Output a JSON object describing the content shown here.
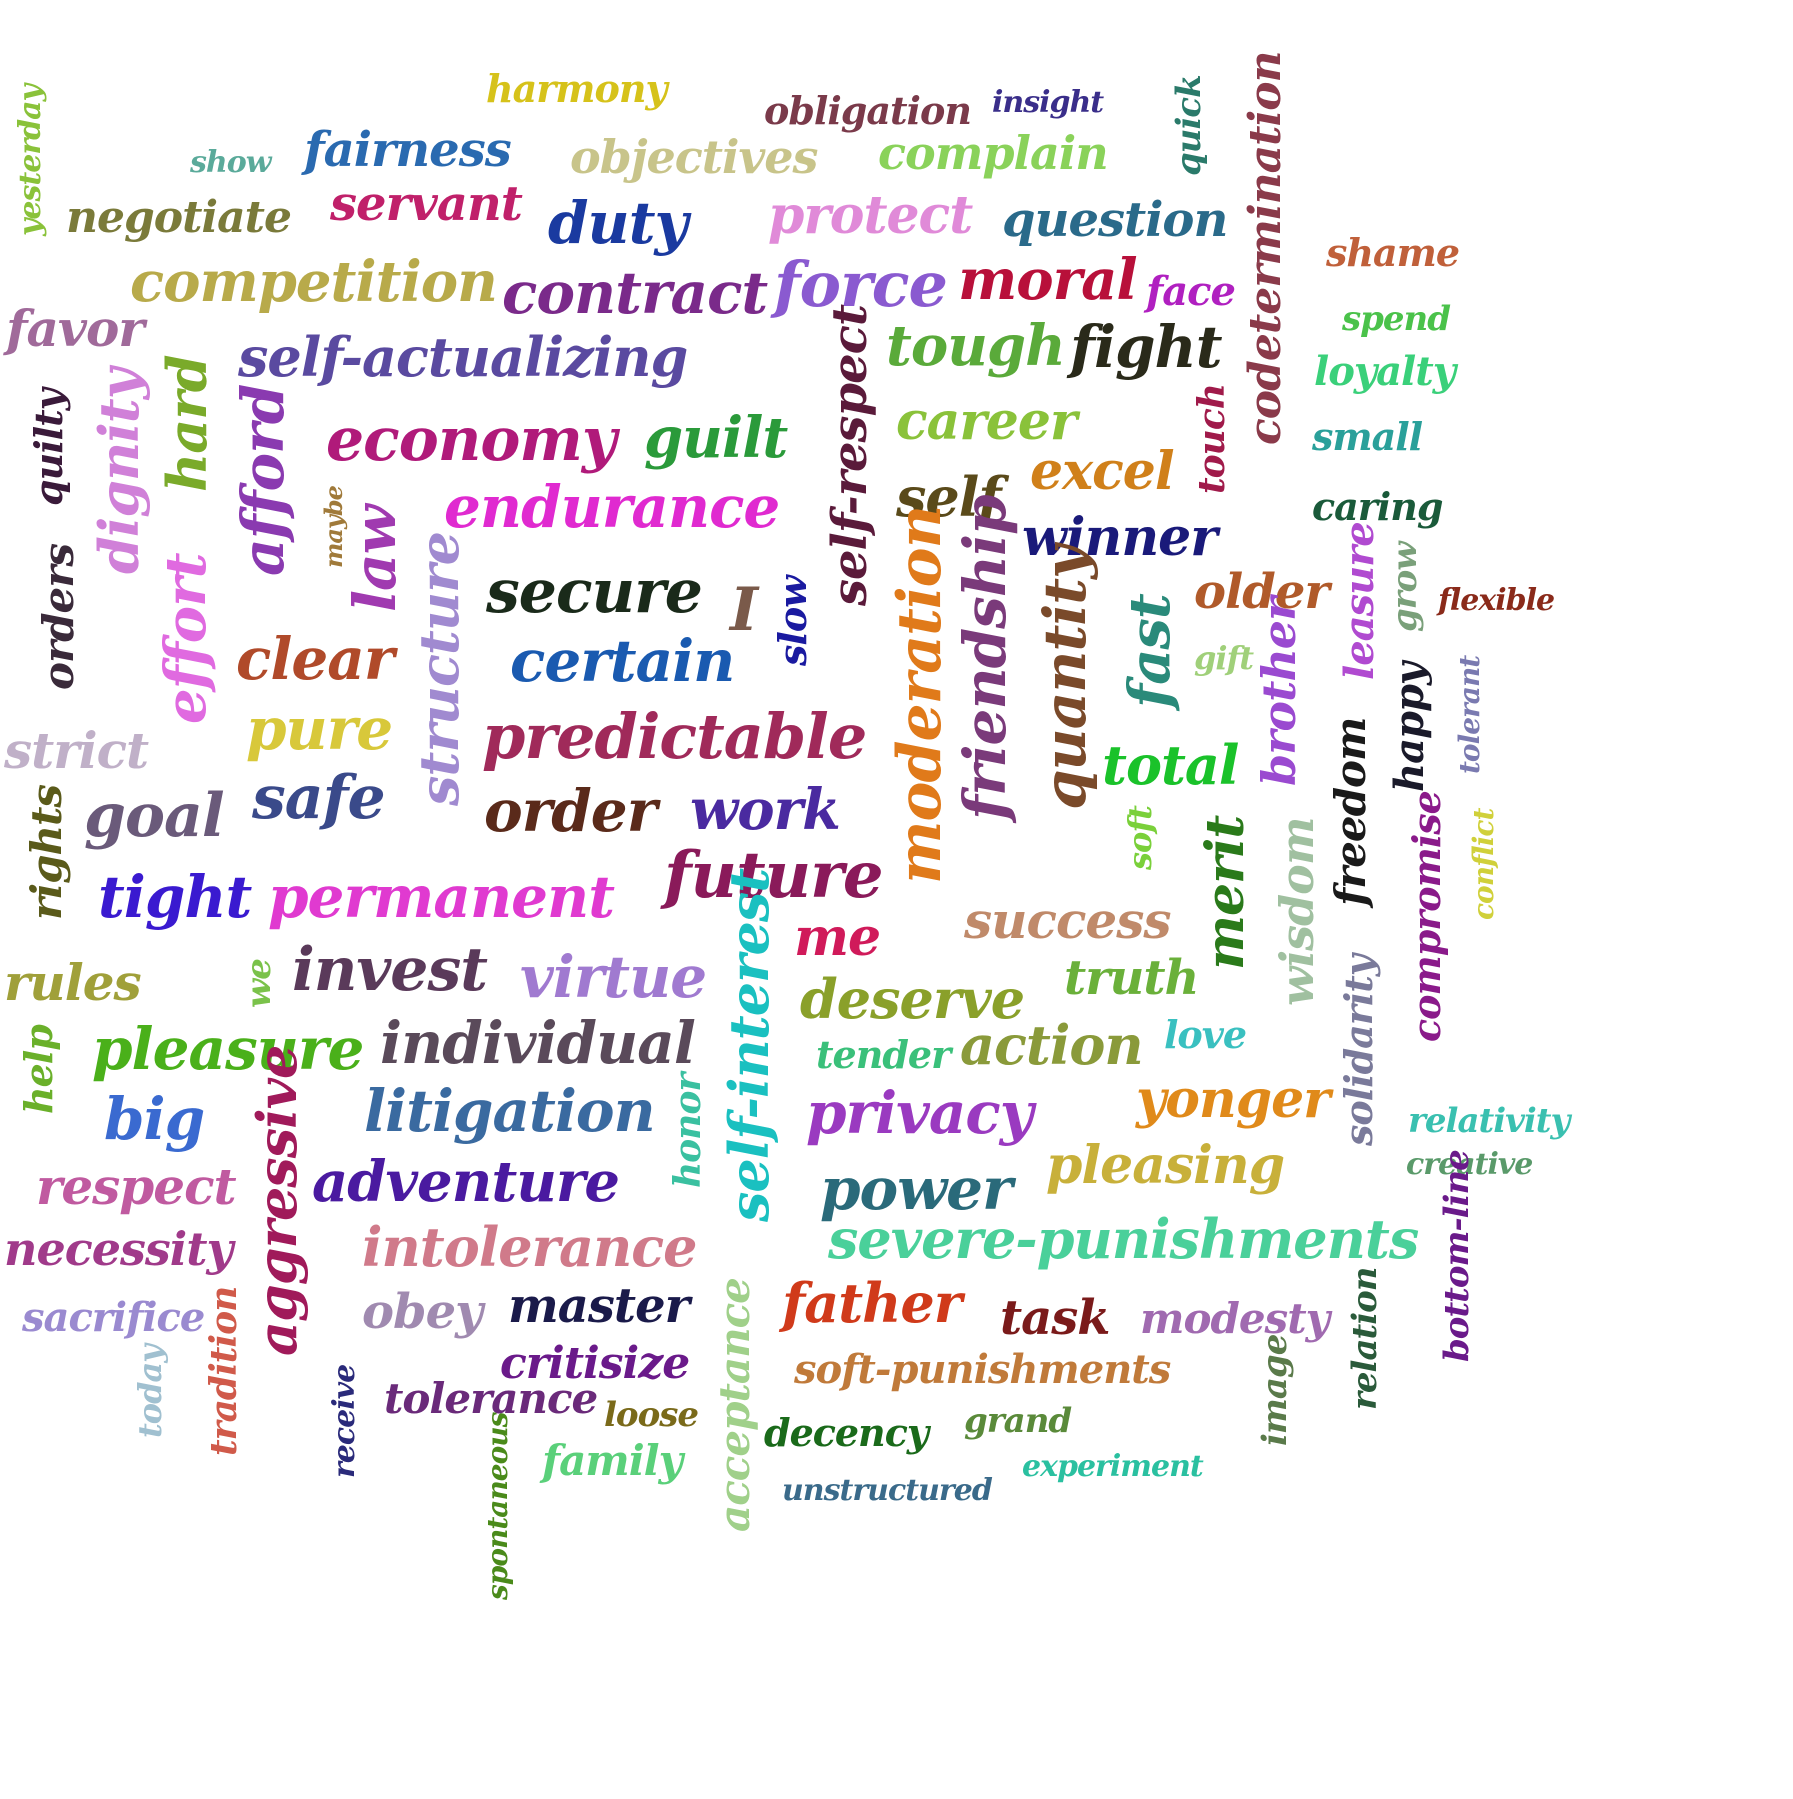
{
  "words": [
    {
      "text": "harmony",
      "color": "#d6c21a"
    },
    {
      "text": "obligation",
      "color": "#7a3a4a"
    },
    {
      "text": "insight",
      "color": "#3a2e8a"
    },
    {
      "text": "quick",
      "color": "#2a7a6a"
    },
    {
      "text": "codetermination",
      "color": "#8a3a4a"
    },
    {
      "text": "yesterday",
      "color": "#8ac23a"
    },
    {
      "text": "show",
      "color": "#5aaa9a"
    },
    {
      "text": "fairness",
      "color": "#2a6ab0"
    },
    {
      "text": "objectives",
      "color": "#c8c48a"
    },
    {
      "text": "complain",
      "color": "#8ad25a"
    },
    {
      "text": "negotiate",
      "color": "#7a7a3a"
    },
    {
      "text": "servant",
      "color": "#c0206a"
    },
    {
      "text": "duty",
      "color": "#1a3aa0"
    },
    {
      "text": "protect",
      "color": "#e08ad8"
    },
    {
      "text": "question",
      "color": "#2a6a8a"
    },
    {
      "text": "shame",
      "color": "#c0603a"
    },
    {
      "text": "competition",
      "color": "#b8aa4a"
    },
    {
      "text": "contract",
      "color": "#7a2a8a"
    },
    {
      "text": "force",
      "color": "#8a5ad0"
    },
    {
      "text": "moral",
      "color": "#b8103a"
    },
    {
      "text": "face",
      "color": "#b020c0"
    },
    {
      "text": "spend",
      "color": "#4ac24a"
    },
    {
      "text": "favor",
      "color": "#a06a9a"
    },
    {
      "text": "loyalty",
      "color": "#3ad07a"
    },
    {
      "text": "self-actualizing",
      "color": "#5a4aa0"
    },
    {
      "text": "self-respect",
      "color": "#5a1a3a"
    },
    {
      "text": "tough",
      "color": "#5aaa3a"
    },
    {
      "text": "fight",
      "color": "#2a2a1a"
    },
    {
      "text": "small",
      "color": "#2aa09a"
    },
    {
      "text": "quilty",
      "color": "#3a1a3a"
    },
    {
      "text": "dignity",
      "color": "#d080d8"
    },
    {
      "text": "hard",
      "color": "#7aaa2a"
    },
    {
      "text": "afford",
      "color": "#8a3ab0"
    },
    {
      "text": "economy",
      "color": "#b01a7a"
    },
    {
      "text": "guilt",
      "color": "#2a9a3a"
    },
    {
      "text": "career",
      "color": "#8ac23a"
    },
    {
      "text": "touch",
      "color": "#a01a4a"
    },
    {
      "text": "excel",
      "color": "#d0801a"
    },
    {
      "text": "caring",
      "color": "#1a5a3a"
    },
    {
      "text": "maybe",
      "color": "#a07a3a"
    },
    {
      "text": "endurance",
      "color": "#e02ad0"
    },
    {
      "text": "self",
      "color": "#5a4a1a"
    },
    {
      "text": "winner",
      "color": "#1a1a7a"
    },
    {
      "text": "orders",
      "color": "#3a2a3a"
    },
    {
      "text": "law",
      "color": "#a03ab0"
    },
    {
      "text": "structure",
      "color": "#a08ad0"
    },
    {
      "text": "secure",
      "color": "#1a2a1a"
    },
    {
      "text": "I",
      "color": "#7a5a4a"
    },
    {
      "text": "slow",
      "color": "#1a1aa0"
    },
    {
      "text": "moderation",
      "color": "#e07a1a"
    },
    {
      "text": "friendship",
      "color": "#7a3a7a"
    },
    {
      "text": "quantity",
      "color": "#7a4a2a"
    },
    {
      "text": "fast",
      "color": "#2a8a7a"
    },
    {
      "text": "older",
      "color": "#b05a2a"
    },
    {
      "text": "gift",
      "color": "#a0d07a"
    },
    {
      "text": "leasure",
      "color": "#b04ad0"
    },
    {
      "text": "grow",
      "color": "#7aa07a"
    },
    {
      "text": "flexible",
      "color": "#8a2a1a"
    },
    {
      "text": "effort",
      "color": "#e06ae0"
    },
    {
      "text": "clear",
      "color": "#b04a2a"
    },
    {
      "text": "certain",
      "color": "#1a5ab0"
    },
    {
      "text": "brother",
      "color": "#9a4ad0"
    },
    {
      "text": "happy",
      "color": "#1a1a2a"
    },
    {
      "text": "tolerant",
      "color": "#7a7ab0"
    },
    {
      "text": "strict",
      "color": "#c0b0c8"
    },
    {
      "text": "pure",
      "color": "#d8c83a"
    },
    {
      "text": "predictable",
      "color": "#a02a5a"
    },
    {
      "text": "total",
      "color": "#1ac22a"
    },
    {
      "text": "rights",
      "color": "#5a5a1a"
    },
    {
      "text": "goal",
      "color": "#6a5a7a"
    },
    {
      "text": "safe",
      "color": "#3a4a8a"
    },
    {
      "text": "order",
      "color": "#5a2a1a"
    },
    {
      "text": "work",
      "color": "#4a2aa0"
    },
    {
      "text": "soft",
      "color": "#7ad03a"
    },
    {
      "text": "freedom",
      "color": "#1a1a1a"
    },
    {
      "text": "conflict",
      "color": "#d0d03a"
    },
    {
      "text": "tight",
      "color": "#3a1ad0"
    },
    {
      "text": "permanent",
      "color": "#e03ad0"
    },
    {
      "text": "future",
      "color": "#8a1a5a"
    },
    {
      "text": "merit",
      "color": "#2a7a1a"
    },
    {
      "text": "wisdom",
      "color": "#a0c0a0"
    },
    {
      "text": "compromise",
      "color": "#8a1a8a"
    },
    {
      "text": "success",
      "color": "#c08a6a"
    },
    {
      "text": "me",
      "color": "#d01a5a"
    },
    {
      "text": "rules",
      "color": "#a0a03a"
    },
    {
      "text": "we",
      "color": "#7ac24a"
    },
    {
      "text": "invest",
      "color": "#5a3a5a"
    },
    {
      "text": "virtue",
      "color": "#a07ad0"
    },
    {
      "text": "self-interest",
      "color": "#1ac0c0"
    },
    {
      "text": "truth",
      "color": "#6ab03a"
    },
    {
      "text": "deserve",
      "color": "#8aa02a"
    },
    {
      "text": "solidarity",
      "color": "#7a7a9a"
    },
    {
      "text": "pleasure",
      "color": "#4ab01a"
    },
    {
      "text": "individual",
      "color": "#5a4a5a"
    },
    {
      "text": "tender",
      "color": "#3ac07a"
    },
    {
      "text": "action",
      "color": "#8a9a3a"
    },
    {
      "text": "love",
      "color": "#3ac0c0"
    },
    {
      "text": "help",
      "color": "#6ab02a"
    },
    {
      "text": "big",
      "color": "#3a6ad0"
    },
    {
      "text": "aggressive",
      "color": "#a01a5a"
    },
    {
      "text": "litigation",
      "color": "#3a6aa0"
    },
    {
      "text": "honor",
      "color": "#3ac0a0"
    },
    {
      "text": "privacy",
      "color": "#9a3ac0"
    },
    {
      "text": "yonger",
      "color": "#e08a1a"
    },
    {
      "text": "relativity",
      "color": "#3ac0b0"
    },
    {
      "text": "respect",
      "color": "#c05aa0"
    },
    {
      "text": "adventure",
      "color": "#4a1aa0"
    },
    {
      "text": "power",
      "color": "#2a6a7a"
    },
    {
      "text": "pleasing",
      "color": "#c8b03a"
    },
    {
      "text": "creative",
      "color": "#5a9a6a"
    },
    {
      "text": "necessity",
      "color": "#a03a8a"
    },
    {
      "text": "intolerance",
      "color": "#d07a8a"
    },
    {
      "text": "severe-punishments",
      "color": "#4ad09a"
    },
    {
      "text": "bottom-line",
      "color": "#6a1a8a"
    },
    {
      "text": "sacrifice",
      "color": "#9a8ad0"
    },
    {
      "text": "obey",
      "color": "#a08ab0"
    },
    {
      "text": "master",
      "color": "#1a1a4a"
    },
    {
      "text": "father",
      "color": "#d03a1a"
    },
    {
      "text": "task",
      "color": "#7a1a1a"
    },
    {
      "text": "modesty",
      "color": "#a06ab0"
    },
    {
      "text": "relation",
      "color": "#2a5a3a"
    },
    {
      "text": "tradition",
      "color": "#d05a4a"
    },
    {
      "text": "critisize",
      "color": "#6a1a8a"
    },
    {
      "text": "acceptance",
      "color": "#a0d08a"
    },
    {
      "text": "soft-punishments",
      "color": "#c07a3a"
    },
    {
      "text": "image",
      "color": "#5a7a4a"
    },
    {
      "text": "today",
      "color": "#a0c0d0"
    },
    {
      "text": "receive",
      "color": "#2a2a7a"
    },
    {
      "text": "tolerance",
      "color": "#6a2a7a"
    },
    {
      "text": "loose",
      "color": "#7a6a1a"
    },
    {
      "text": "decency",
      "color": "#1a6a1a"
    },
    {
      "text": "grand",
      "color": "#5a8a3a"
    },
    {
      "text": "experiment",
      "color": "#2ac0a0"
    },
    {
      "text": "spontaneous",
      "color": "#4a8a1a"
    },
    {
      "text": "family",
      "color": "#5ad07a"
    },
    {
      "text": "unstructured",
      "color": "#3a6a8a"
    }
  ]
}
